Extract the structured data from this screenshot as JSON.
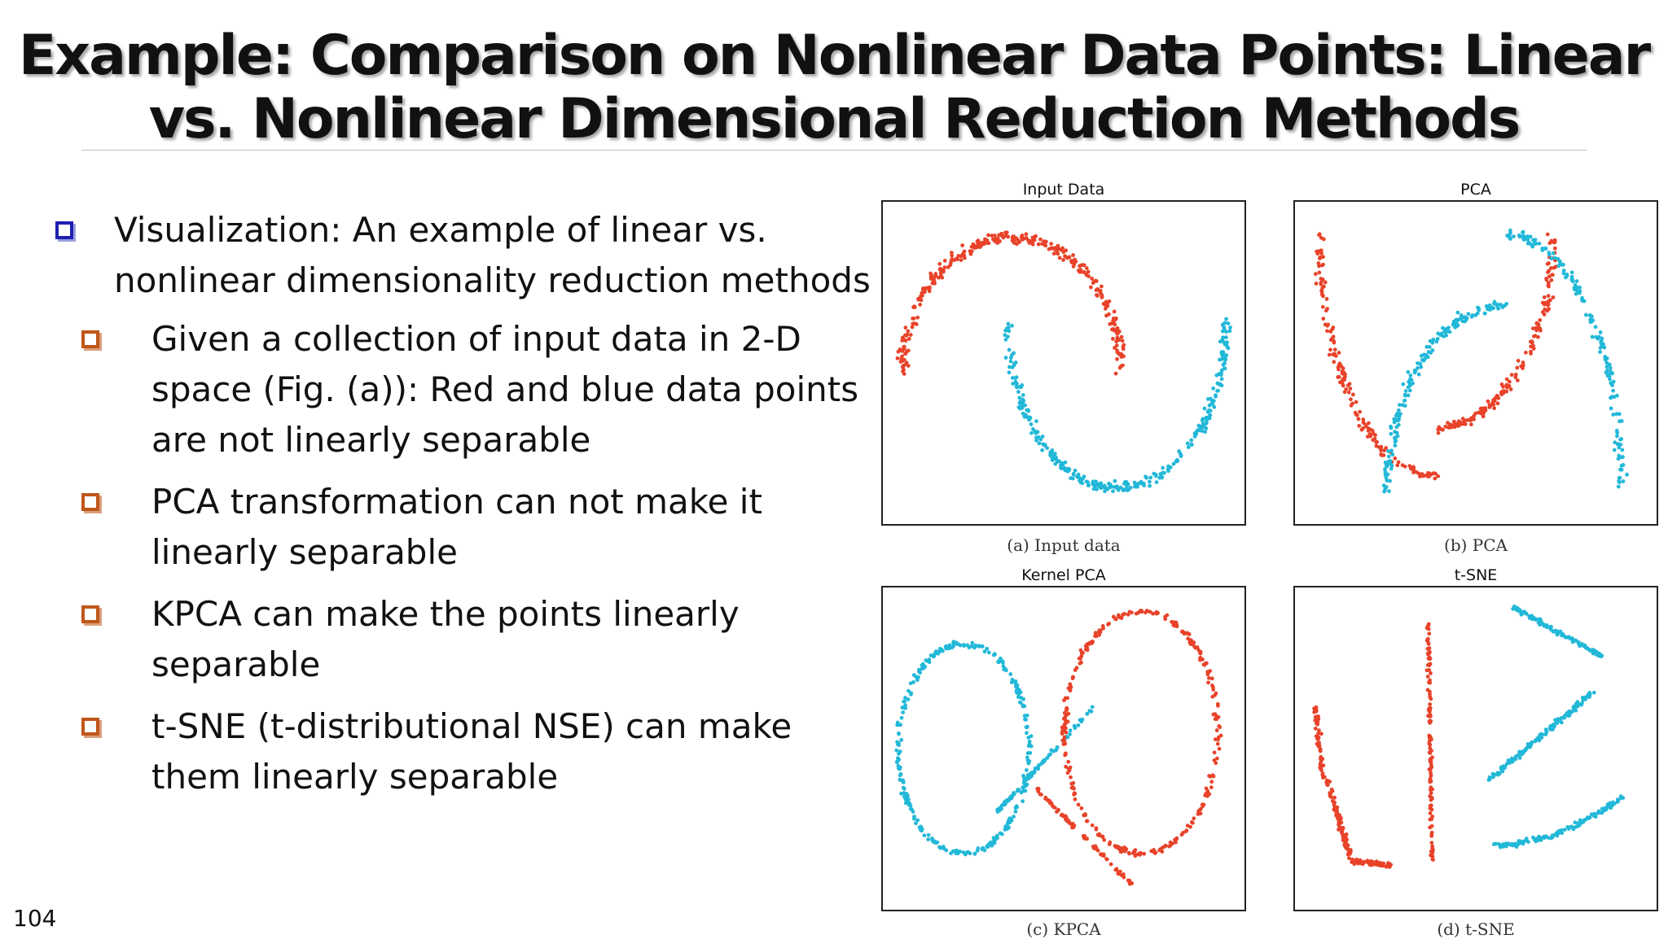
{
  "slide": {
    "title_line1": "Example:  Comparison on Nonlinear Data Points: Linear",
    "title_line2": "vs. Nonlinear Dimensional Reduction Methods",
    "page_number": "104"
  },
  "bullets": [
    {
      "level": 1,
      "text": "Visualization: An example of linear vs. nonlinear dimensionality reduction methods"
    },
    {
      "level": 2,
      "text": "Given a collection of input data in 2-D space (Fig. (a)): Red and blue data points are not linearly separable"
    },
    {
      "level": 2,
      "text": "PCA transformation can not make it linearly separable"
    },
    {
      "level": 2,
      "text": "KPCA can make the points linearly separable"
    },
    {
      "level": 2,
      "text": "t-SNE (t-distributional NSE) can make them linearly separable"
    }
  ],
  "colors": {
    "red": "#e8432a",
    "blue": "#22b8d8",
    "l1_bullet": "#1f1fb5",
    "l2_bullet": "#c0561a"
  },
  "chart_data": [
    {
      "type": "scatter",
      "title": "Input Data",
      "caption": "(a) Input data",
      "series": [
        {
          "color": "#e8432a",
          "shape": "upper half moon"
        },
        {
          "color": "#22b8d8",
          "shape": "lower half moon"
        }
      ]
    },
    {
      "type": "scatter",
      "title": "PCA",
      "caption": "(b) PCA",
      "series": [
        {
          "color": "#e8432a",
          "shape": "U curve"
        },
        {
          "color": "#22b8d8",
          "shape": "arch curve"
        }
      ]
    },
    {
      "type": "scatter",
      "title": "Kernel PCA",
      "caption": "(c) KPCA",
      "series": [
        {
          "color": "#e8432a",
          "shape": "right lobe"
        },
        {
          "color": "#22b8d8",
          "shape": "left lobe"
        }
      ]
    },
    {
      "type": "scatter",
      "title": "t-SNE",
      "caption": "(d) t-SNE",
      "series": [
        {
          "color": "#e8432a",
          "shape": "U clusters"
        },
        {
          "color": "#22b8d8",
          "shape": "S clusters"
        }
      ]
    }
  ]
}
